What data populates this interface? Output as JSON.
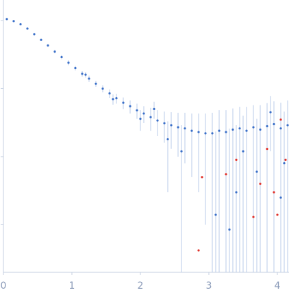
{
  "chart_data": {
    "type": "scatter",
    "xlim": [
      -0.05,
      4.17
    ],
    "xticks": [
      0,
      1,
      2,
      3,
      4
    ],
    "ylim": [
      0.0002,
      2
    ],
    "yticks": [
      0.001,
      0.01,
      0.1,
      1
    ],
    "y_log": true,
    "y_tick_labels": false,
    "error_color": "#b9cbea",
    "axis_color": "#c4cfe0",
    "series": [
      {
        "color": "#3a6fc8",
        "x": [
          0.05,
          0.15,
          0.25,
          0.35,
          0.45,
          0.55,
          0.65,
          0.75,
          0.85,
          0.95,
          1.05,
          1.15,
          1.25,
          1.35,
          1.45,
          1.55,
          1.65,
          1.75,
          1.85,
          1.95,
          2.05,
          2.15,
          2.25,
          2.35,
          2.45,
          2.55,
          2.65,
          2.75,
          2.85,
          2.95,
          3.05,
          3.15,
          3.25,
          3.35,
          3.45,
          3.55,
          3.65,
          3.75,
          3.85,
          3.95,
          4.05,
          4.15,
          1.2,
          1.6,
          2.0,
          2.2,
          2.4,
          2.6,
          3.1,
          3.3,
          3.4,
          3.5,
          3.7,
          3.9,
          4.05,
          4.1
        ],
        "values": [
          1.05,
          0.98,
          0.88,
          0.76,
          0.63,
          0.52,
          0.43,
          0.35,
          0.29,
          0.24,
          0.2,
          0.165,
          0.14,
          0.118,
          0.1,
          0.085,
          0.072,
          0.062,
          0.055,
          0.048,
          0.043,
          0.038,
          0.034,
          0.031,
          0.029,
          0.027,
          0.026,
          0.024,
          0.023,
          0.022,
          0.022,
          0.024,
          0.023,
          0.025,
          0.026,
          0.024,
          0.027,
          0.025,
          0.028,
          0.03,
          0.026,
          0.029,
          0.16,
          0.07,
          0.036,
          0.05,
          0.018,
          0.012,
          0.0014,
          0.00085,
          0.003,
          0.012,
          0.006,
          0.045,
          0.0025,
          0.008
        ],
        "errors": [
          0.03,
          0.03,
          0.03,
          0.03,
          0.03,
          0.02,
          0.02,
          0.02,
          0.02,
          0.02,
          0.015,
          0.015,
          0.015,
          0.012,
          0.012,
          0.012,
          0.012,
          0.012,
          0.012,
          0.012,
          0.012,
          0.014,
          0.014,
          0.015,
          0.016,
          0.017,
          0.018,
          0.019,
          0.02,
          0.021,
          0.022,
          0.024,
          0.025,
          0.026,
          0.028,
          0.03,
          0.03,
          0.032,
          0.033,
          0.035,
          0.036,
          0.038,
          0.015,
          0.012,
          0.012,
          0.014,
          0.015,
          0.017,
          0.022,
          0.025,
          0.026,
          0.028,
          0.03,
          0.033,
          0.036,
          0.038
        ]
      },
      {
        "color": "#e0322b",
        "x": [
          2.85,
          2.9,
          3.25,
          3.4,
          3.65,
          3.75,
          3.85,
          3.95,
          4.0,
          4.05,
          4.12
        ],
        "values": [
          0.00042,
          0.005,
          0.0055,
          0.009,
          0.0013,
          0.004,
          0.013,
          0.003,
          0.0014,
          0.035,
          0.009
        ]
      }
    ]
  }
}
